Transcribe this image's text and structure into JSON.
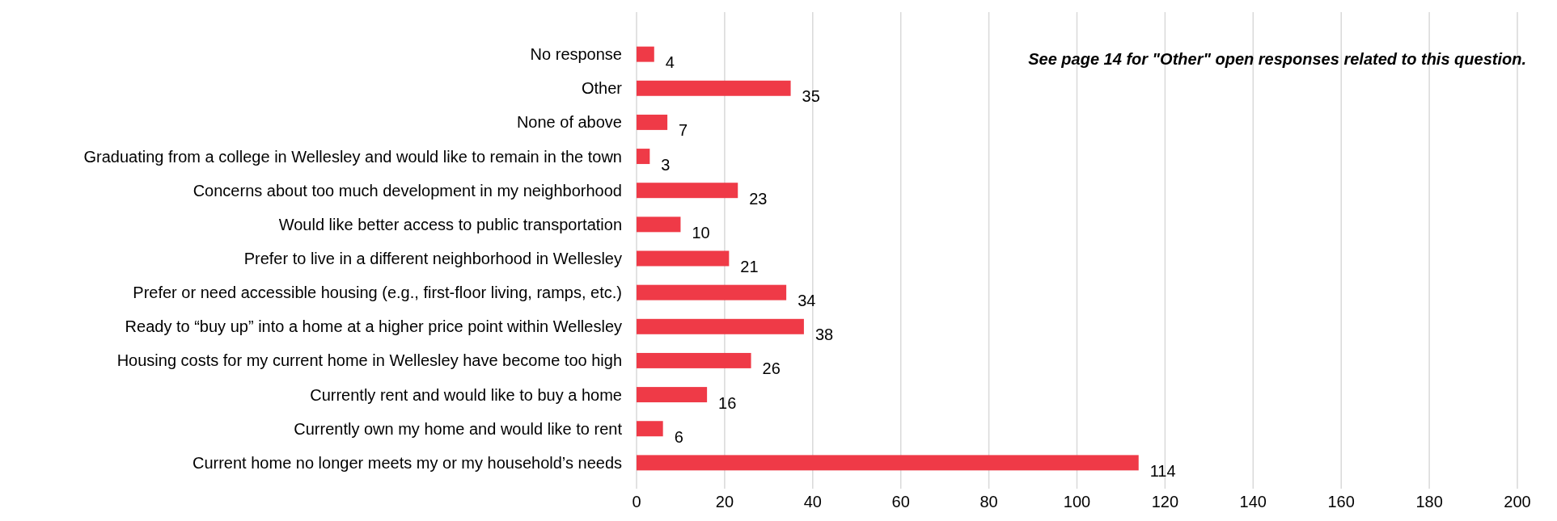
{
  "chart_data": {
    "type": "bar",
    "orientation": "horizontal",
    "categories": [
      "No response",
      "Other",
      "None of above",
      "Graduating from a college in Wellesley and would like to remain in the town",
      "Concerns about too much development in my neighborhood",
      "Would like better access to public transportation",
      "Prefer to live in a different neighborhood in Wellesley",
      "Prefer or need accessible housing (e.g., first-floor living, ramps, etc.)",
      "Ready to “buy up” into a home at a higher price point within Wellesley",
      "Housing costs for my current home in Wellesley have become too high",
      "Currently rent and would like to buy a home",
      "Currently own my home and would like to rent",
      "Current home no longer meets my or my household’s needs"
    ],
    "values": [
      4,
      35,
      7,
      3,
      23,
      10,
      21,
      34,
      38,
      26,
      16,
      6,
      114
    ],
    "color": "#ef3a47",
    "xlim": [
      0,
      200
    ],
    "xticks": [
      0,
      20,
      40,
      60,
      80,
      100,
      120,
      140,
      160,
      180,
      200
    ],
    "grid": "x",
    "data_labels": true,
    "annotations": [
      "See page 14 for \"Other\" open responses related to this question."
    ]
  }
}
